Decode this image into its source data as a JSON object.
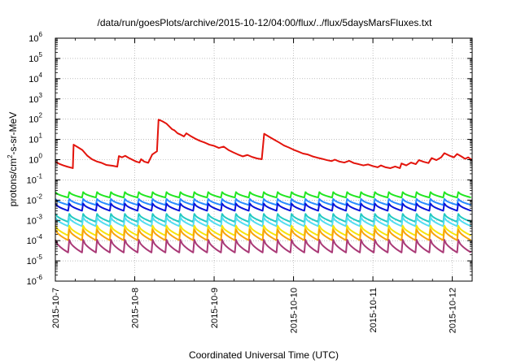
{
  "chart_data": {
    "type": "line",
    "title": "/data/run/goesPlots/archive/2015-10-12/04:00/flux/../flux/5daysMarsFluxes.txt",
    "xlabel": "Coordinated Universal Time (UTC)",
    "ylabel_parts": {
      "pre": "protons/cm",
      "sup": "2",
      "post": "-s-sr-MeV"
    },
    "x_range_days": [
      0,
      5.25
    ],
    "x_ticks": [
      {
        "label": "2015-10-7",
        "day": 0.0
      },
      {
        "label": "2015-10-8",
        "day": 1.0
      },
      {
        "label": "2015-10-9",
        "day": 2.0
      },
      {
        "label": "2015-10-10",
        "day": 3.0
      },
      {
        "label": "2015-10-11",
        "day": 4.0
      },
      {
        "label": "2015-10-12",
        "day": 5.0
      }
    ],
    "y_scale": "log",
    "y_range_exp": [
      -6,
      6
    ],
    "y_ticks": [
      {
        "base": "10",
        "exp": "6",
        "e": 6
      },
      {
        "base": "10",
        "exp": "5",
        "e": 5
      },
      {
        "base": "10",
        "exp": "4",
        "e": 4
      },
      {
        "base": "10",
        "exp": "3",
        "e": 3
      },
      {
        "base": "10",
        "exp": "2",
        "e": 2
      },
      {
        "base": "10",
        "exp": "1",
        "e": 1
      },
      {
        "base": "10",
        "exp": "0",
        "e": 0
      },
      {
        "base": "10",
        "exp": "-1",
        "e": -1
      },
      {
        "base": "10",
        "exp": "-2",
        "e": -2
      },
      {
        "base": "10",
        "exp": "-3",
        "e": -3
      },
      {
        "base": "10",
        "exp": "-4",
        "e": -4
      },
      {
        "base": "10",
        "exp": "-5",
        "e": -5
      },
      {
        "base": "10",
        "exp": "-6",
        "e": -6
      }
    ],
    "grid": true,
    "red_series": {
      "color": "#e3140c",
      "points": [
        [
          0.0,
          0.8
        ],
        [
          0.05,
          0.62
        ],
        [
          0.1,
          0.52
        ],
        [
          0.15,
          0.45
        ],
        [
          0.22,
          0.38
        ],
        [
          0.23,
          5.5
        ],
        [
          0.28,
          4.2
        ],
        [
          0.34,
          3.0
        ],
        [
          0.4,
          1.6
        ],
        [
          0.46,
          1.05
        ],
        [
          0.52,
          0.82
        ],
        [
          0.58,
          0.7
        ],
        [
          0.64,
          0.55
        ],
        [
          0.72,
          0.5
        ],
        [
          0.78,
          0.45
        ],
        [
          0.8,
          1.5
        ],
        [
          0.84,
          1.3
        ],
        [
          0.88,
          1.55
        ],
        [
          0.92,
          1.25
        ],
        [
          0.98,
          0.95
        ],
        [
          1.02,
          0.8
        ],
        [
          1.06,
          0.72
        ],
        [
          1.08,
          1.05
        ],
        [
          1.12,
          0.8
        ],
        [
          1.17,
          0.7
        ],
        [
          1.22,
          1.8
        ],
        [
          1.28,
          2.6
        ],
        [
          1.3,
          95
        ],
        [
          1.35,
          78
        ],
        [
          1.4,
          60
        ],
        [
          1.44,
          42
        ],
        [
          1.47,
          32
        ],
        [
          1.5,
          28
        ],
        [
          1.54,
          20
        ],
        [
          1.58,
          17
        ],
        [
          1.62,
          14
        ],
        [
          1.65,
          20
        ],
        [
          1.7,
          15
        ],
        [
          1.76,
          11
        ],
        [
          1.82,
          8.5
        ],
        [
          1.88,
          7.0
        ],
        [
          1.94,
          5.5
        ],
        [
          2.0,
          4.8
        ],
        [
          2.06,
          3.8
        ],
        [
          2.12,
          4.4
        ],
        [
          2.18,
          3.0
        ],
        [
          2.24,
          2.3
        ],
        [
          2.3,
          1.8
        ],
        [
          2.36,
          1.45
        ],
        [
          2.42,
          1.7
        ],
        [
          2.48,
          1.35
        ],
        [
          2.54,
          1.15
        ],
        [
          2.6,
          1.05
        ],
        [
          2.63,
          19
        ],
        [
          2.7,
          13
        ],
        [
          2.76,
          9.5
        ],
        [
          2.82,
          7.0
        ],
        [
          2.88,
          5.0
        ],
        [
          2.94,
          4.0
        ],
        [
          3.0,
          3.1
        ],
        [
          3.06,
          2.5
        ],
        [
          3.12,
          2.0
        ],
        [
          3.18,
          1.8
        ],
        [
          3.24,
          1.45
        ],
        [
          3.3,
          1.25
        ],
        [
          3.36,
          1.1
        ],
        [
          3.42,
          0.95
        ],
        [
          3.48,
          0.85
        ],
        [
          3.52,
          1.0
        ],
        [
          3.58,
          0.8
        ],
        [
          3.64,
          0.72
        ],
        [
          3.7,
          0.88
        ],
        [
          3.76,
          0.68
        ],
        [
          3.82,
          0.6
        ],
        [
          3.88,
          0.52
        ],
        [
          3.94,
          0.58
        ],
        [
          4.0,
          0.48
        ],
        [
          4.06,
          0.42
        ],
        [
          4.1,
          0.52
        ],
        [
          4.16,
          0.42
        ],
        [
          4.22,
          0.38
        ],
        [
          4.28,
          0.46
        ],
        [
          4.34,
          0.38
        ],
        [
          4.36,
          0.65
        ],
        [
          4.42,
          0.52
        ],
        [
          4.48,
          0.72
        ],
        [
          4.54,
          0.6
        ],
        [
          4.58,
          0.95
        ],
        [
          4.64,
          0.78
        ],
        [
          4.7,
          0.68
        ],
        [
          4.74,
          1.2
        ],
        [
          4.8,
          0.95
        ],
        [
          4.86,
          1.3
        ],
        [
          4.9,
          2.1
        ],
        [
          4.96,
          1.6
        ],
        [
          5.02,
          1.3
        ],
        [
          5.06,
          1.9
        ],
        [
          5.12,
          1.4
        ],
        [
          5.16,
          1.1
        ],
        [
          5.2,
          1.3
        ],
        [
          5.25,
          0.95
        ]
      ]
    },
    "diurnal_series": {
      "cycles": 30,
      "period_days": 0.175,
      "members": [
        {
          "color": "#22e622",
          "high": 0.025,
          "low": 0.0135
        },
        {
          "color": "#2a8cff",
          "high": 0.0115,
          "low": 0.0058
        },
        {
          "color": "#0a14d8",
          "high": 0.0068,
          "low": 0.003
        },
        {
          "color": "#23c9c1",
          "high": 0.0021,
          "low": 0.00085
        },
        {
          "color": "#52ddf2",
          "high": 0.0014,
          "low": 0.00052
        },
        {
          "color": "#f7e40a",
          "high": 0.00055,
          "low": 0.00018
        },
        {
          "color": "#f7a30c",
          "high": 0.00036,
          "low": 0.000105
        },
        {
          "color": "#aa3a77",
          "high": 0.00011,
          "low": 2.6e-05
        }
      ]
    }
  }
}
